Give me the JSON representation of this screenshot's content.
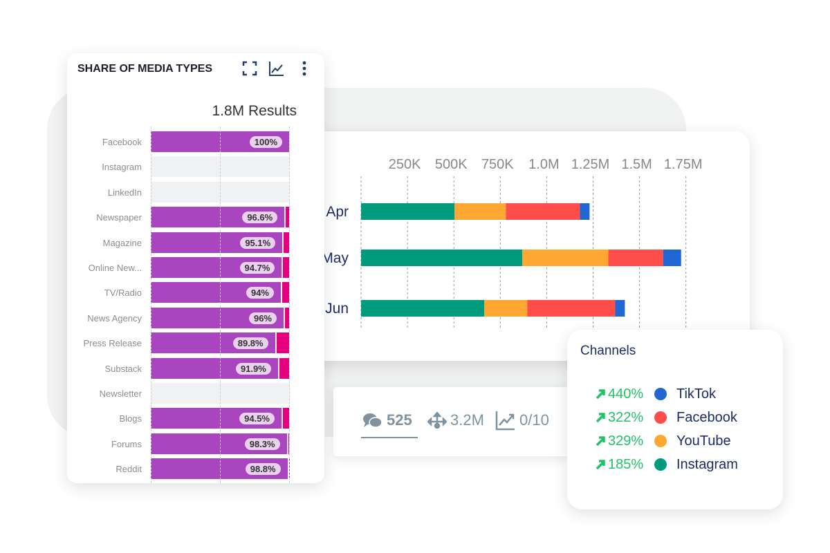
{
  "media_panel": {
    "title": "SHARE OF MEDIA TYPES",
    "results": "1.8M Results",
    "icons": [
      "expand-icon",
      "line-chart-icon",
      "more-vertical-icon"
    ]
  },
  "chart_data": [
    {
      "type": "bar",
      "title": "SHARE OF MEDIA TYPES",
      "orientation": "horizontal",
      "stacked": true,
      "xlim": [
        0,
        100
      ],
      "categories": [
        "Facebook",
        "Instagram",
        "LinkedIn",
        "Newspaper",
        "Magazine",
        "Online New...",
        "TV/Radio",
        "News Agency",
        "Press Release",
        "Substack",
        "Newsletter",
        "Blogs",
        "Forums",
        "Reddit"
      ],
      "values": [
        100,
        null,
        null,
        96.6,
        95.1,
        94.7,
        94,
        96,
        89.8,
        91.9,
        null,
        94.5,
        98.3,
        98.8
      ],
      "labels": [
        "100%",
        "",
        "",
        "96.6%",
        "95.1%",
        "94.7%",
        "94%",
        "96%",
        "89.8%",
        "91.9%",
        "",
        "94.5%",
        "98.3%",
        "98.8%"
      ],
      "colors": {
        "primary": "#a945bf",
        "remainder": "#e4007f",
        "empty": "#f0f1f2"
      }
    },
    {
      "type": "bar",
      "orientation": "horizontal",
      "stacked": true,
      "categories": [
        "Apr",
        "May",
        "Jun"
      ],
      "xticks": [
        "250K",
        "500K",
        "750K",
        "1.0M",
        "1.25M",
        "1.5M",
        "1.75M"
      ],
      "xlim": [
        0,
        1750000
      ],
      "series": [
        {
          "name": "Instagram",
          "color": "#009b7d",
          "values": [
            504000,
            869000,
            664000
          ]
        },
        {
          "name": "YouTube",
          "color": "#ffa733",
          "values": [
            276000,
            463000,
            231000
          ]
        },
        {
          "name": "Facebook",
          "color": "#ff4d4a",
          "values": [
            399000,
            295000,
            474000
          ]
        },
        {
          "name": "TikTok",
          "color": "#2067d4",
          "values": [
            52000,
            97000,
            52000
          ]
        }
      ]
    }
  ],
  "stats": {
    "comments": "525",
    "reach": "3.2M",
    "trend": "0/10"
  },
  "channels": {
    "title": "Channels",
    "items": [
      {
        "change": "440%",
        "name": "TikTok",
        "color": "#2067d4"
      },
      {
        "change": "322%",
        "name": "Facebook",
        "color": "#ff4d4a"
      },
      {
        "change": "329%",
        "name": "YouTube",
        "color": "#ffa733"
      },
      {
        "change": "185%",
        "name": "Instagram",
        "color": "#009b7d"
      }
    ]
  }
}
